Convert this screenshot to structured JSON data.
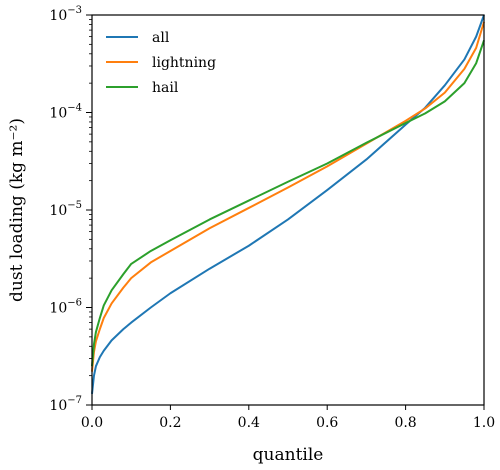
{
  "chart_data": {
    "type": "line",
    "xlabel": "quantile",
    "ylabel": "dust loading (kg m⁻²)",
    "xlim": [
      0.0,
      1.0
    ],
    "ylim": [
      1e-07,
      0.001
    ],
    "yscale": "log",
    "grid": false,
    "legend_position": "top-left",
    "x_ticks": [
      "0.0",
      "0.2",
      "0.4",
      "0.6",
      "0.8",
      "1.0"
    ],
    "y_ticks": [
      {
        "base": "10",
        "exp": "−7"
      },
      {
        "base": "10",
        "exp": "−6"
      },
      {
        "base": "10",
        "exp": "−5"
      },
      {
        "base": "10",
        "exp": "−4"
      },
      {
        "base": "10",
        "exp": "−3"
      }
    ],
    "x": [
      0.0,
      0.005,
      0.01,
      0.02,
      0.03,
      0.05,
      0.08,
      0.1,
      0.15,
      0.2,
      0.3,
      0.4,
      0.5,
      0.6,
      0.7,
      0.8,
      0.85,
      0.9,
      0.95,
      0.98,
      1.0
    ],
    "series": [
      {
        "name": "all",
        "color": "#1f77b4",
        "values": [
          1.3e-07,
          2e-07,
          2.5e-07,
          3.1e-07,
          3.6e-07,
          4.6e-07,
          6e-07,
          7e-07,
          1e-06,
          1.4e-06,
          2.5e-06,
          4.3e-06,
          8e-06,
          1.6e-05,
          3.3e-05,
          7.5e-05,
          0.000112,
          0.00019,
          0.00035,
          0.0006,
          0.001
        ]
      },
      {
        "name": "lightning",
        "color": "#ff7f0e",
        "values": [
          2.2e-07,
          3.5e-07,
          4.5e-07,
          6e-07,
          7.8e-07,
          1.1e-06,
          1.6e-06,
          2e-06,
          2.9e-06,
          3.8e-06,
          6.5e-06,
          1.05e-05,
          1.7e-05,
          2.8e-05,
          4.8e-05,
          8.2e-05,
          0.00011,
          0.00016,
          0.00028,
          0.00046,
          0.00085
        ]
      },
      {
        "name": "hail",
        "color": "#2ca02c",
        "values": [
          2.5e-07,
          4.2e-07,
          5.6e-07,
          7.8e-07,
          1.05e-06,
          1.5e-06,
          2.2e-06,
          2.8e-06,
          3.8e-06,
          4.9e-06,
          8e-06,
          1.25e-05,
          1.95e-05,
          3e-05,
          4.9e-05,
          7.8e-05,
          9.8e-05,
          0.00013,
          0.0002,
          0.00032,
          0.00055
        ]
      }
    ]
  }
}
